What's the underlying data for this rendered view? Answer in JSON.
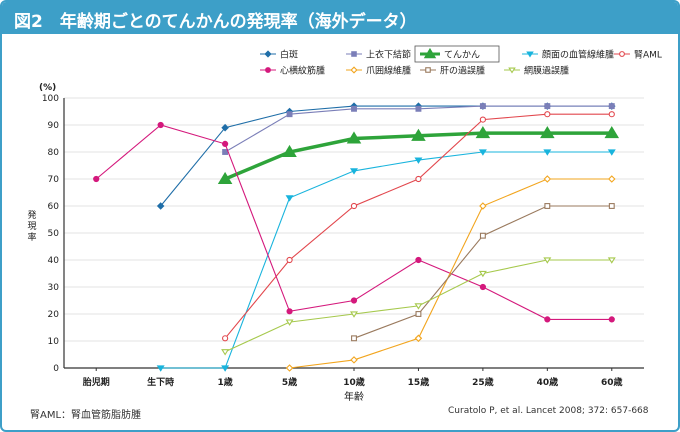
{
  "title": "図2　年齢期ごとのてんかんの発現率（海外データ）",
  "footnote": "腎AML：腎血管筋脂肪腫",
  "source": "Curatolo P, et al. Lancet 2008; 372: 657-668",
  "chart_data": {
    "type": "line",
    "title": "図2　年齢期ごとのてんかんの発現率（海外データ）",
    "xlabel": "年齢",
    "ylabel": "発現率",
    "yunit": "(%)",
    "ylim": [
      0,
      100
    ],
    "yticks": [
      0,
      10,
      20,
      30,
      40,
      50,
      60,
      70,
      80,
      90,
      100
    ],
    "categories": [
      "胎児期",
      "生下時",
      "1歳",
      "5歳",
      "10歳",
      "15歳",
      "25歳",
      "40歳",
      "60歳"
    ],
    "legend_position": "top-right",
    "series": [
      {
        "name": "白斑",
        "color": "#1f6ea8",
        "marker": "diamond",
        "values": [
          null,
          60,
          89,
          95,
          97,
          97,
          97,
          97,
          97
        ]
      },
      {
        "name": "上衣下結節",
        "color": "#7b7fb8",
        "marker": "square",
        "values": [
          null,
          null,
          80,
          94,
          96,
          96,
          97,
          97,
          97
        ]
      },
      {
        "name": "てんかん",
        "color": "#2ea43a",
        "marker": "triangle",
        "emphasis": true,
        "values": [
          null,
          null,
          70,
          80,
          85,
          86,
          87,
          87,
          87
        ]
      },
      {
        "name": "顔面の血管線維腫",
        "color": "#19b4dd",
        "marker": "triangle-down",
        "values": [
          null,
          0,
          0,
          63,
          73,
          77,
          80,
          80,
          80
        ]
      },
      {
        "name": "腎AML",
        "color": "#e2474d",
        "marker": "circle-open",
        "values": [
          null,
          null,
          11,
          40,
          60,
          70,
          92,
          94,
          94
        ]
      },
      {
        "name": "心横紋筋腫",
        "color": "#d4197c",
        "marker": "circle",
        "values": [
          70,
          90,
          83,
          21,
          25,
          40,
          30,
          18,
          18
        ]
      },
      {
        "name": "爪囲線維腫",
        "color": "#f2a51e",
        "marker": "diamond-open",
        "values": [
          null,
          null,
          null,
          0,
          3,
          11,
          60,
          70,
          70
        ]
      },
      {
        "name": "肝の過誤腫",
        "color": "#9a7a5e",
        "marker": "square-open",
        "values": [
          null,
          null,
          null,
          null,
          11,
          20,
          49,
          60,
          60
        ]
      },
      {
        "name": "網膜過誤腫",
        "color": "#a6c94d",
        "marker": "triangle-down-open",
        "values": [
          null,
          null,
          6,
          17,
          20,
          23,
          35,
          40,
          40
        ]
      }
    ]
  }
}
